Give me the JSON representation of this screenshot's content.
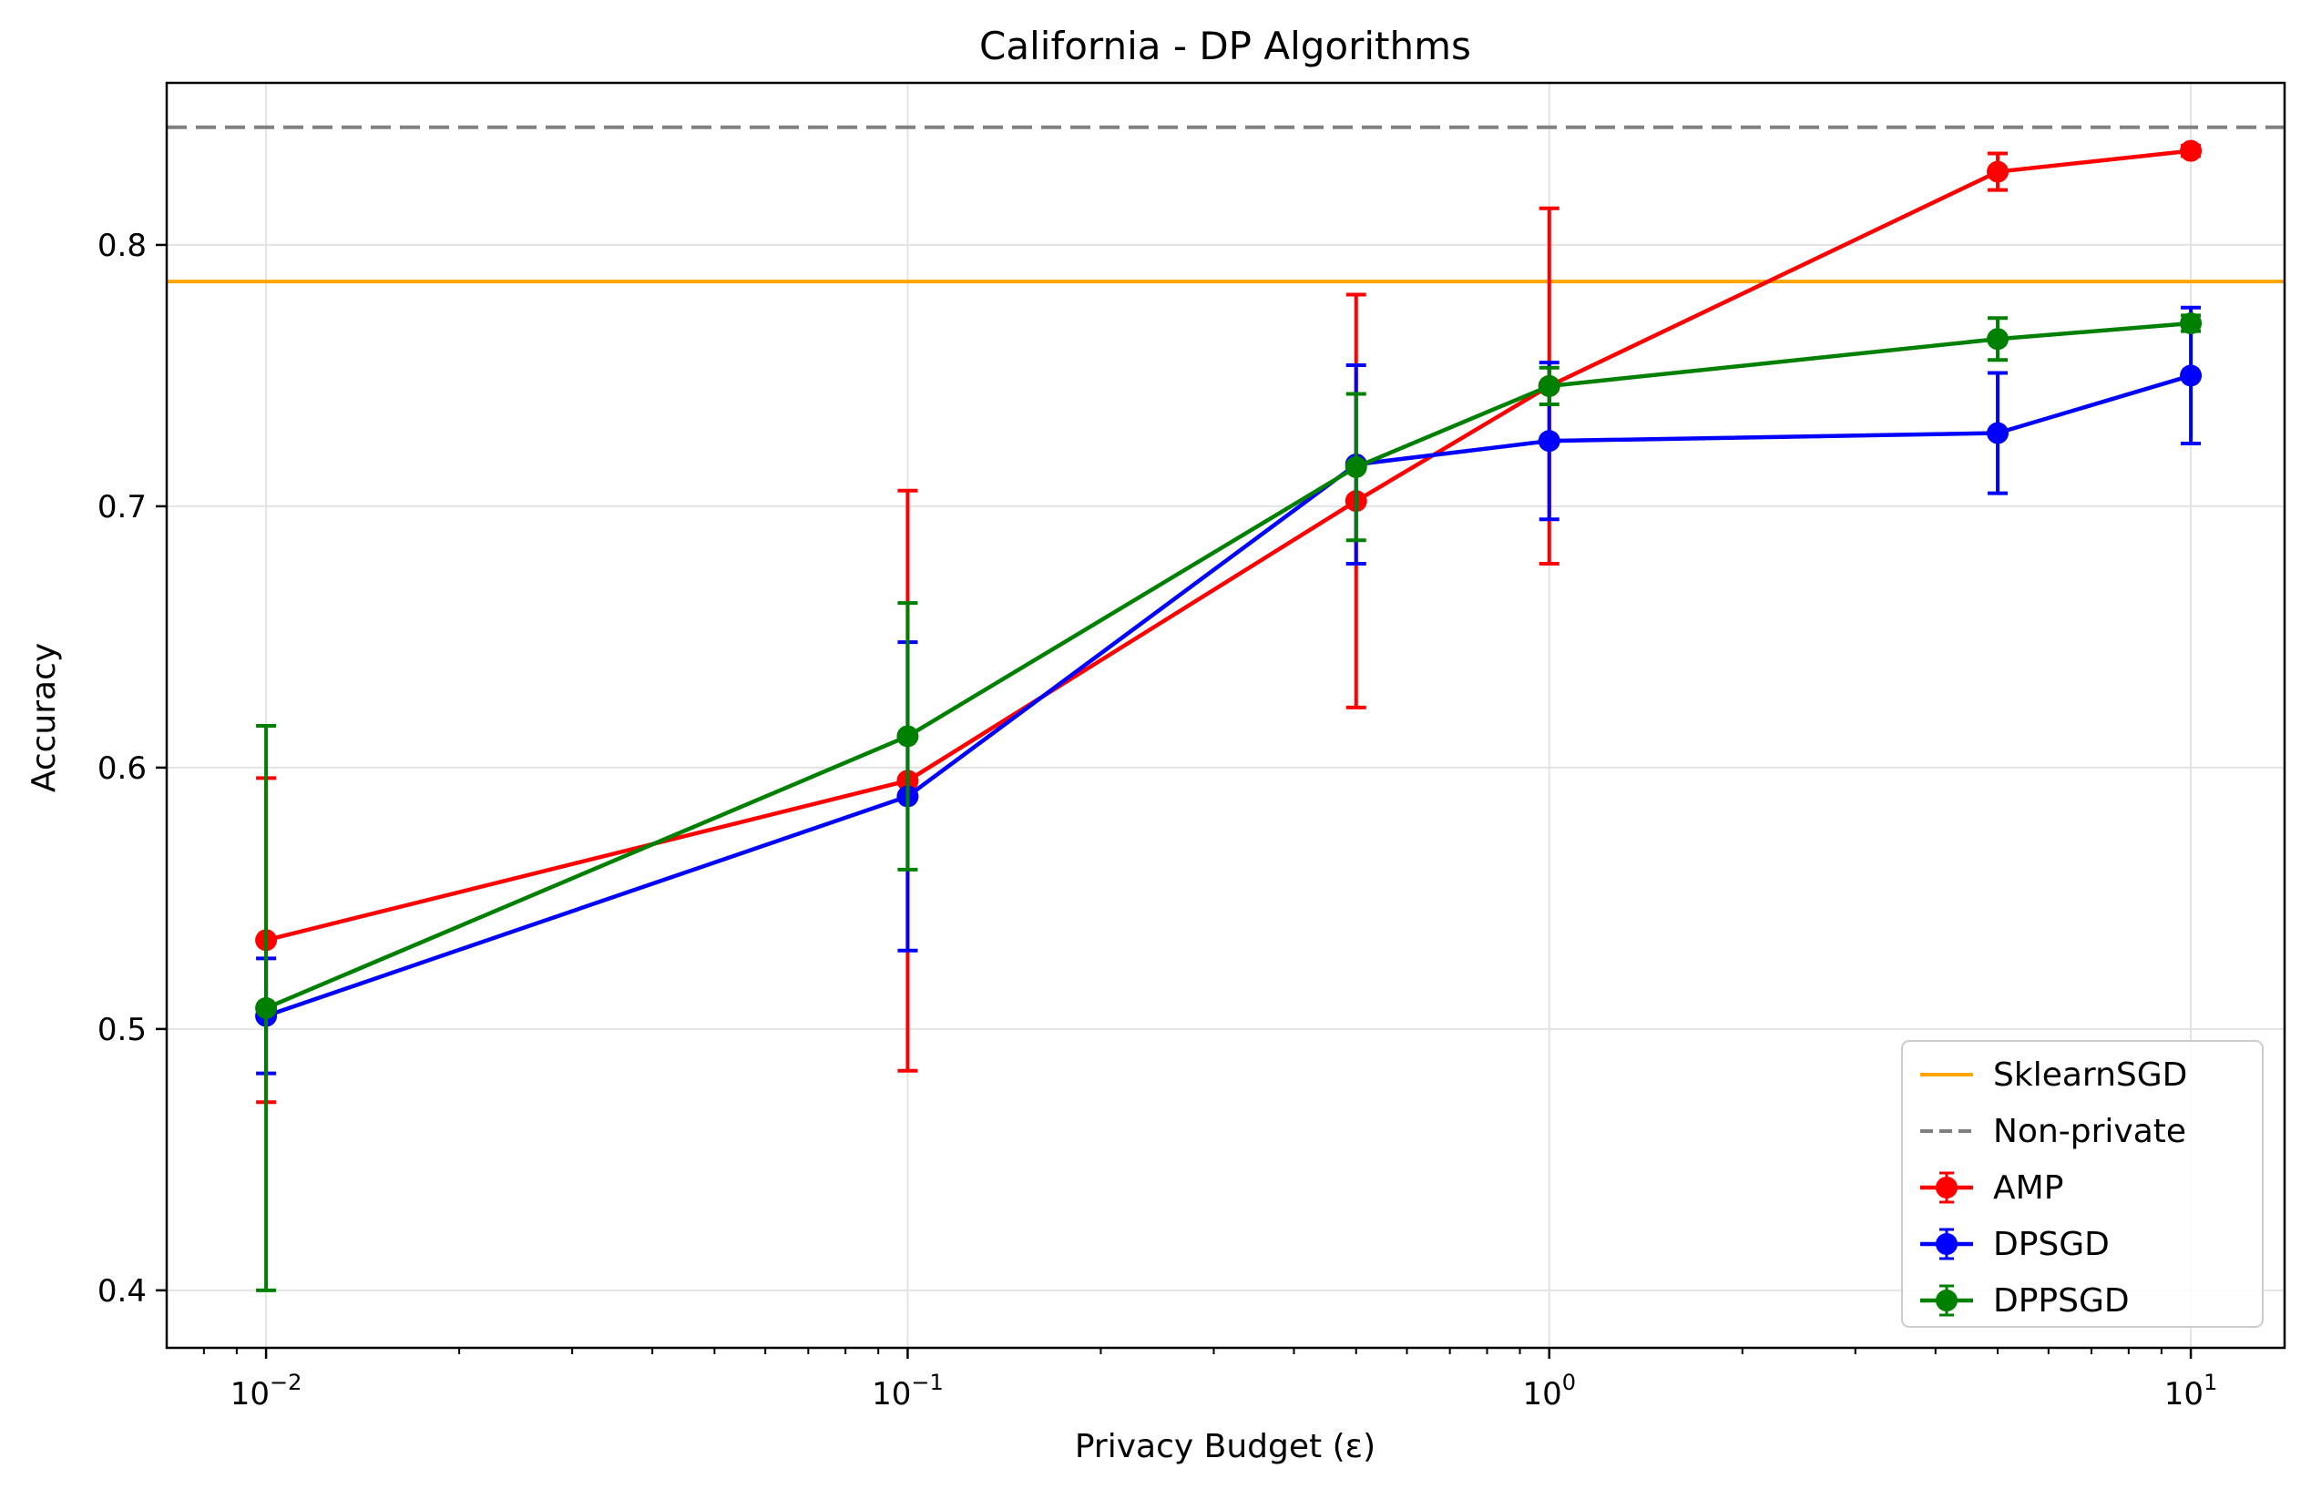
{
  "chart_data": {
    "type": "line",
    "title": "California - DP Algorithms",
    "xlabel": "Privacy Budget (ε)",
    "ylabel": "Accuracy",
    "xscale": "log",
    "xlim": [
      0.007,
      14
    ],
    "ylim": [
      0.378,
      0.862
    ],
    "grid": true,
    "legend_position": "bottom-right",
    "x_ticks": [
      {
        "value": 0.01,
        "base": "10",
        "exp": "−2"
      },
      {
        "value": 0.1,
        "base": "10",
        "exp": "−1"
      },
      {
        "value": 1,
        "base": "10",
        "exp": "0"
      },
      {
        "value": 10,
        "base": "10",
        "exp": "1"
      }
    ],
    "y_ticks": [
      0.4,
      0.5,
      0.6,
      0.7,
      0.8
    ],
    "y_tick_labels": [
      "0.4",
      "0.5",
      "0.6",
      "0.7",
      "0.8"
    ],
    "x": [
      0.01,
      0.1,
      0.5,
      1,
      5,
      10
    ],
    "reference_lines": [
      {
        "name": "SklearnSGD",
        "y": 0.786,
        "color": "#FFA500",
        "style": "solid"
      },
      {
        "name": "Non-private",
        "y": 0.845,
        "color": "#808080",
        "style": "dashed"
      }
    ],
    "series": [
      {
        "name": "AMP",
        "color": "#FF0000",
        "values": [
          0.534,
          0.595,
          0.702,
          0.746,
          0.828,
          0.836
        ],
        "errors": [
          0.062,
          0.111,
          0.079,
          0.068,
          0.007,
          0.002
        ]
      },
      {
        "name": "DPSGD",
        "color": "#0000FF",
        "values": [
          0.505,
          0.589,
          0.716,
          0.725,
          0.728,
          0.75
        ],
        "errors": [
          0.022,
          0.059,
          0.038,
          0.03,
          0.023,
          0.026
        ]
      },
      {
        "name": "DPPSGD",
        "color": "#008000",
        "values": [
          0.508,
          0.612,
          0.715,
          0.746,
          0.764,
          0.77
        ],
        "errors": [
          0.108,
          0.051,
          0.028,
          0.007,
          0.008,
          0.003
        ]
      }
    ]
  }
}
